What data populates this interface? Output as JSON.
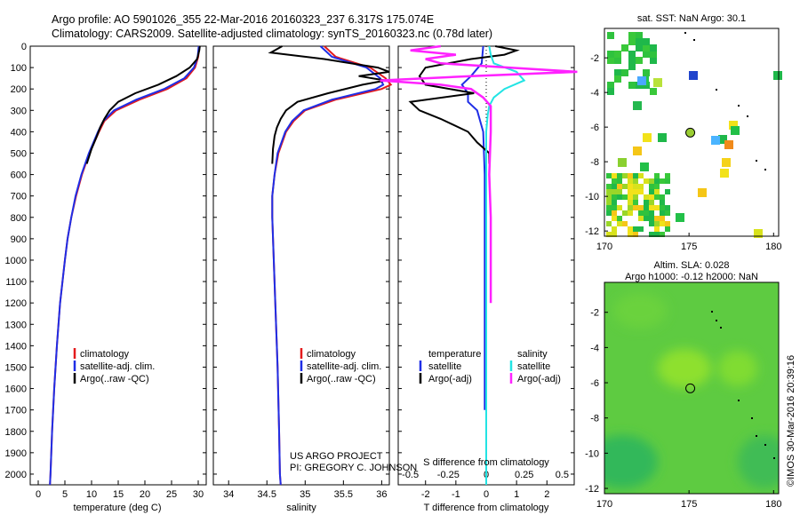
{
  "header": {
    "line1": "Argo profile: AO 5901026_355 22-Mar-2016 20160323_237 6.317S 175.074E",
    "line2": "Climatology: CARS2009. Satellite-adjusted climatology: synTS_20160323.nc (0.78d later)"
  },
  "credits": {
    "project": "US ARGO PROJECT",
    "pi": "PI: GREGORY C. JOHNSON",
    "imos": "©IMOS 30-Mar-2016 20:39:16"
  },
  "colors": {
    "climatology": "#e41a1c",
    "satellite": "#1f2ee6",
    "argo": "#000000",
    "salinity_satellite": "#22e4e4",
    "salinity_argo": "#ff22ff"
  },
  "chart_data": [
    {
      "type": "line",
      "xlabel": "temperature (deg C)",
      "xticks": [
        0,
        5,
        10,
        15,
        20,
        25,
        30
      ],
      "xlim": [
        -1.5,
        31.5
      ],
      "ylim": [
        0,
        2050
      ],
      "yticks": [
        0,
        100,
        200,
        300,
        400,
        500,
        600,
        700,
        800,
        900,
        1000,
        1100,
        1200,
        1300,
        1400,
        1500,
        1600,
        1700,
        1800,
        1900,
        2000
      ],
      "y_inverted": true,
      "legend": [
        "climatology",
        "satellite-adj. clim.",
        "Argo(..raw -QC)"
      ],
      "series": [
        {
          "name": "climatology",
          "depth": [
            0,
            50,
            100,
            150,
            200,
            250,
            300,
            350,
            400,
            500,
            600,
            700,
            800,
            900,
            1000,
            1200,
            1400,
            1600,
            1800,
            2000,
            2050
          ],
          "values": [
            30.2,
            30.0,
            29.4,
            27.8,
            24.2,
            19.0,
            14.6,
            12.4,
            11.4,
            9.6,
            8.2,
            7.1,
            6.2,
            5.5,
            5.0,
            4.1,
            3.5,
            3.0,
            2.6,
            2.3,
            2.2
          ]
        },
        {
          "name": "satellite-adj. clim.",
          "depth": [
            0,
            50,
            100,
            150,
            200,
            250,
            300,
            350,
            400,
            500,
            600,
            700,
            800,
            900,
            1000,
            1200,
            1400,
            1600,
            1800,
            2000,
            2050
          ],
          "values": [
            30.1,
            29.9,
            29.2,
            27.4,
            23.6,
            18.4,
            14.2,
            12.2,
            11.2,
            9.5,
            8.1,
            7.0,
            6.2,
            5.5,
            5.0,
            4.1,
            3.5,
            3.0,
            2.6,
            2.3,
            2.2
          ]
        },
        {
          "name": "Argo(..raw -QC)",
          "depth": [
            0,
            20,
            60,
            100,
            140,
            180,
            220,
            260,
            300,
            340,
            380,
            420,
            480,
            550
          ],
          "values": [
            30.3,
            30.2,
            29.8,
            28.4,
            25.9,
            22.5,
            18.2,
            15.0,
            13.4,
            12.4,
            11.6,
            11.0,
            10.0,
            9.1
          ]
        }
      ]
    },
    {
      "type": "line",
      "xlabel": "salinity",
      "xticks": [
        34,
        34.5,
        35,
        35.5,
        36
      ],
      "xlim": [
        33.8,
        36.1
      ],
      "ylim": [
        0,
        2050
      ],
      "y_inverted": true,
      "legend": [
        "climatology",
        "satellite-adj. clim.",
        "Argo(..raw -QC)"
      ],
      "series": [
        {
          "name": "climatology",
          "depth": [
            0,
            50,
            100,
            150,
            180,
            200,
            250,
            300,
            350,
            400,
            500,
            600,
            700,
            800,
            1000,
            1200,
            1500,
            1800,
            2000,
            2050
          ],
          "values": [
            35.25,
            35.4,
            35.85,
            36.05,
            36.12,
            36.0,
            35.4,
            35.0,
            34.85,
            34.75,
            34.65,
            34.6,
            34.57,
            34.57,
            34.59,
            34.61,
            34.64,
            34.66,
            34.67,
            34.68
          ]
        },
        {
          "name": "satellite-adj. clim.",
          "depth": [
            0,
            50,
            100,
            150,
            180,
            200,
            250,
            300,
            350,
            400,
            500,
            600,
            700,
            800,
            1000,
            1200,
            1500,
            1800,
            2000,
            2050
          ],
          "values": [
            35.2,
            35.35,
            35.8,
            35.98,
            36.02,
            35.92,
            35.35,
            34.98,
            34.83,
            34.74,
            34.64,
            34.6,
            34.57,
            34.57,
            34.59,
            34.61,
            34.64,
            34.66,
            34.67,
            34.68
          ]
        },
        {
          "name": "Argo(..raw -QC)",
          "depth": [
            0,
            30,
            60,
            100,
            120,
            140,
            160,
            180,
            220,
            260,
            300,
            340,
            380,
            420,
            480,
            550
          ],
          "values": [
            34.7,
            34.55,
            35.25,
            35.95,
            36.1,
            35.7,
            36.05,
            35.75,
            35.3,
            34.9,
            34.75,
            34.68,
            34.63,
            34.6,
            34.58,
            34.57
          ]
        }
      ]
    },
    {
      "type": "line",
      "xlabel": "T difference from climatology",
      "xlabel2": "S difference from climatology",
      "xticks": [
        -2,
        -1,
        0,
        1,
        2
      ],
      "xticks2": [
        -0.5,
        -0.25,
        0,
        0.25,
        0.5
      ],
      "xlim": [
        -2.9,
        2.9
      ],
      "ylim": [
        0,
        2050
      ],
      "y_inverted": true,
      "legend": [
        "temperature",
        "satellite",
        "Argo(-adj)",
        "salinity",
        "satellite",
        "Argo(-adj)"
      ],
      "series": [
        {
          "name": "satellite",
          "depth": [
            0,
            80,
            140,
            180,
            220,
            260,
            300,
            400,
            600,
            800,
            1000,
            1200,
            1500,
            1700
          ],
          "values": [
            -0.1,
            -0.15,
            -0.5,
            -0.8,
            -0.6,
            -0.6,
            -0.3,
            -0.1,
            -0.05,
            -0.05,
            -0.05,
            -0.05,
            -0.05,
            -0.05
          ]
        },
        {
          "name": "Argo(-adj)",
          "depth": [
            0,
            20,
            40,
            60,
            100,
            140,
            180,
            220,
            260,
            300,
            340,
            400,
            450,
            500,
            550
          ],
          "values": [
            0.3,
            1.0,
            0.6,
            -0.5,
            -2.0,
            -2.2,
            -2.0,
            -0.4,
            -2.5,
            -2.2,
            -1.5,
            -0.6,
            -0.3,
            0.1,
            0.1
          ]
        },
        {
          "name": "salinity satellite",
          "depth": [
            0,
            40,
            80,
            120,
            160,
            200,
            240,
            280,
            320,
            400,
            600,
            800,
            1000,
            1200,
            1500,
            2050
          ],
          "values": [
            0.02,
            0.03,
            0.05,
            0.2,
            0.25,
            0.12,
            0.05,
            0.02,
            0.01,
            0.0,
            0.0,
            0.0,
            0.0,
            0.0,
            0.0,
            0.0
          ]
        },
        {
          "name": "salinity Argo(-adj)",
          "depth": [
            0,
            20,
            40,
            60,
            80,
            100,
            120,
            140,
            160,
            180,
            200,
            240,
            280,
            320,
            400,
            600,
            800,
            1000,
            1200
          ],
          "values": [
            -0.3,
            -0.5,
            -0.2,
            -0.4,
            -0.3,
            0.15,
            0.6,
            -0.1,
            -0.7,
            -0.3,
            -0.1,
            -0.02,
            0.03,
            0.03,
            0.03,
            0.02,
            0.03,
            0.03,
            0.03
          ]
        }
      ]
    },
    {
      "type": "heatmap",
      "title": "sat. SST: NaN Argo: 30.1",
      "xticks": [
        170,
        175,
        180
      ],
      "yticks": [
        -2,
        -4,
        -6,
        -8,
        -10,
        -12
      ],
      "xlim": [
        170,
        180.3
      ],
      "ylim": [
        -12.3,
        -0.3
      ],
      "marker": {
        "lon": 175.074,
        "lat": -6.317
      }
    },
    {
      "type": "heatmap",
      "title": "Altim. SLA: 0.028",
      "subtitle": "Argo h1000: -0.12 h2000: NaN",
      "xticks": [
        170,
        175,
        180
      ],
      "yticks": [
        -2,
        -4,
        -6,
        -8,
        -10,
        -12
      ],
      "xlim": [
        170,
        180.3
      ],
      "ylim": [
        -12.3,
        -0.3
      ],
      "marker": {
        "lon": 175.074,
        "lat": -6.317
      }
    }
  ]
}
